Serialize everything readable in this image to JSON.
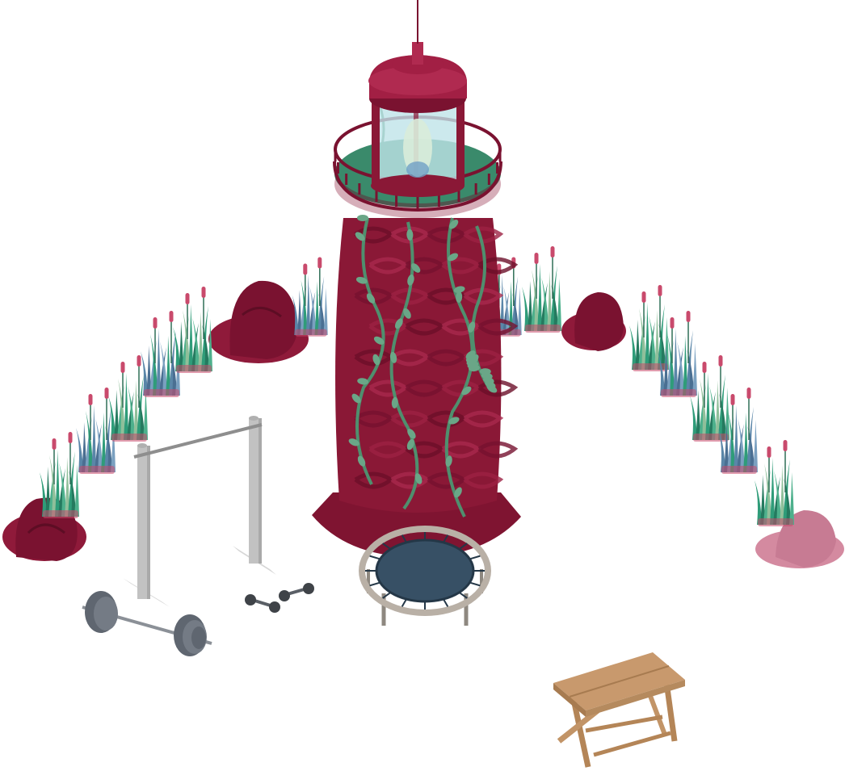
{
  "scene": {
    "background": "#ffffff",
    "objects": [
      {
        "name": "lighthouse",
        "label": ""
      },
      {
        "name": "reed-hedge-left",
        "label": ""
      },
      {
        "name": "reed-hedge-right",
        "label": ""
      },
      {
        "name": "pull-up-bar",
        "label": ""
      },
      {
        "name": "barbell",
        "label": ""
      },
      {
        "name": "dumbbell",
        "label": ""
      },
      {
        "name": "mini-trampoline",
        "label": ""
      },
      {
        "name": "folding-table",
        "label": ""
      }
    ]
  },
  "palette": {
    "tower_dark": "#7a1230",
    "tower_mid": "#8f1a3a",
    "tower_light": "#a8294d",
    "vine": "#4f8f6e",
    "leaf": "#6aa687",
    "lantern_deck": "#2f7a5d",
    "lantern_glass": "#bfe3e8",
    "reed_green": "#2f9c79",
    "reed_blue": "#5a86a8",
    "reed_pink": "#c94a6c",
    "boulder": "#7a1230",
    "metal_light": "#c2c2c2",
    "metal_dark": "#5f6670",
    "trampoline_mat": "#375065",
    "trampoline_frame": "#b9b0a6",
    "table_wood": "#c29467"
  }
}
